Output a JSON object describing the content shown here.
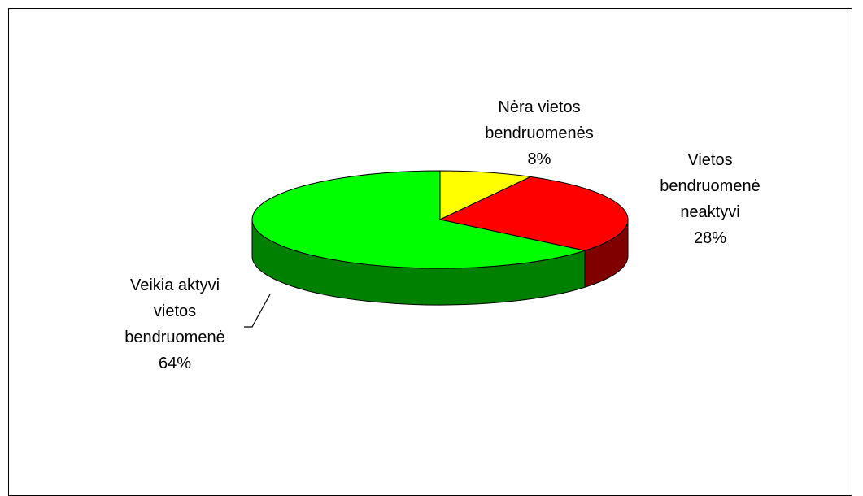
{
  "chart_data": {
    "type": "pie",
    "categories": [
      "Nėra vietos bendruomenės",
      "Vietos bendruomenė neaktyvi",
      "Veikia aktyvi vietos bendruomenė"
    ],
    "values": [
      8,
      28,
      64
    ],
    "value_labels": [
      "8%",
      "28%",
      "64%"
    ],
    "colors": [
      "#ffff00",
      "#ff0000",
      "#00ff00"
    ],
    "side_colors": [
      "#808000",
      "#800000",
      "#008000"
    ]
  }
}
